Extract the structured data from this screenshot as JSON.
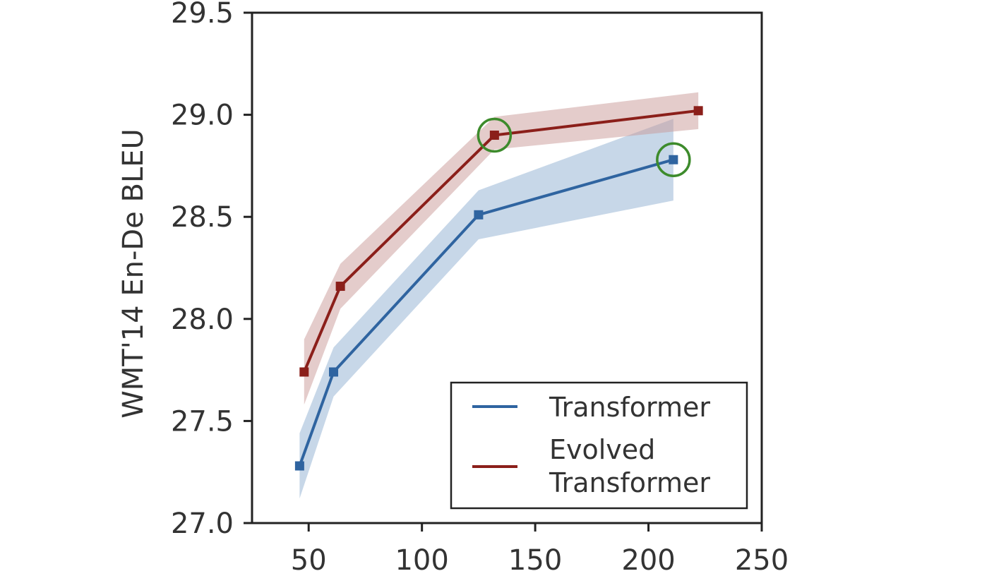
{
  "chart_data": {
    "type": "line",
    "title": "",
    "xlabel": "",
    "ylabel": "WMT'14 En-De BLEU",
    "xlim": [
      25,
      250
    ],
    "ylim": [
      27.0,
      29.5
    ],
    "xticks": [
      50,
      100,
      150,
      200,
      250
    ],
    "yticks": [
      27.0,
      27.5,
      28.0,
      28.5,
      29.0,
      29.5
    ],
    "xtick_labels": [
      "50",
      "100",
      "150",
      "200",
      "250"
    ],
    "ytick_labels": [
      "27.0",
      "27.5",
      "28.0",
      "28.5",
      "29.0",
      "29.5"
    ],
    "grid": false,
    "legend_position": "lower-right",
    "legend_entries": [
      "Transformer",
      "Evolved",
      "Transformer"
    ],
    "series": [
      {
        "name": "Transformer",
        "color": "#2f64a0",
        "band_color": "#8fb0d2",
        "x": [
          46,
          61,
          125,
          211
        ],
        "y": [
          27.28,
          27.74,
          28.51,
          28.78
        ],
        "lower": [
          27.12,
          27.62,
          28.39,
          28.58
        ],
        "upper": [
          27.44,
          27.86,
          28.63,
          28.98
        ],
        "highlighted_index": 3
      },
      {
        "name": "Evolved Transformer",
        "color": "#8b1f1a",
        "band_color": "#c99a98",
        "x": [
          48,
          64,
          132,
          222
        ],
        "y": [
          27.74,
          28.16,
          28.9,
          29.02
        ],
        "lower": [
          27.58,
          28.05,
          28.83,
          28.93
        ],
        "upper": [
          27.9,
          28.27,
          28.99,
          29.11
        ],
        "highlighted_index": 2
      }
    ],
    "highlight_color": "#3d8b2c"
  }
}
